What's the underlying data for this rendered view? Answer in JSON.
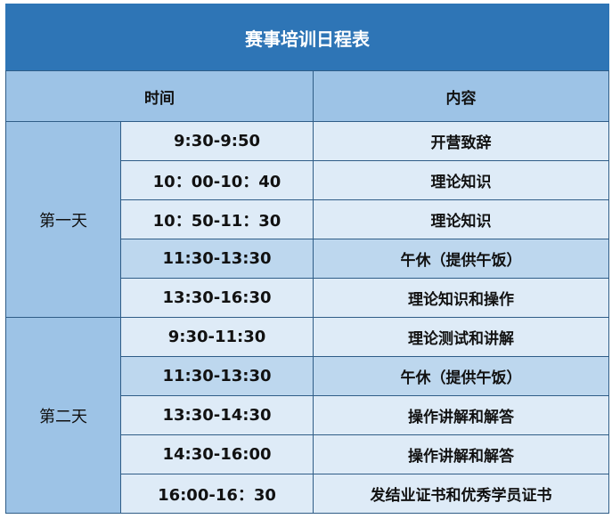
{
  "title": "赛事培训日程表",
  "headers": {
    "time": "时间",
    "content": "内容"
  },
  "colors": {
    "title_bg": "#2e75b6",
    "header_bg": "#9dc3e6",
    "row_bg": "#deebf7",
    "lunch_bg": "#bdd7ee"
  },
  "days": [
    {
      "label": "第一天",
      "rows": [
        {
          "time": "9:30-9:50",
          "content": "开营致辞"
        },
        {
          "time": "10：00-10：40",
          "content": "理论知识"
        },
        {
          "time": "10：50-11：30",
          "content": "理论知识"
        },
        {
          "time": "11:30-13:30",
          "content": "午休（提供午饭）"
        },
        {
          "time": "13:30-16:30",
          "content": "理论知识和操作"
        }
      ]
    },
    {
      "label": "第二天",
      "rows": [
        {
          "time": "9:30-11:30",
          "content": "理论测试和讲解"
        },
        {
          "time": "11:30-13:30",
          "content": "午休（提供午饭）"
        },
        {
          "time": "13:30-14:30",
          "content": "操作讲解和解答"
        },
        {
          "time": "14:30-16:00",
          "content": "操作讲解和解答"
        },
        {
          "time": "16:00-16：30",
          "content": "发结业证书和优秀学员证书"
        }
      ]
    }
  ]
}
